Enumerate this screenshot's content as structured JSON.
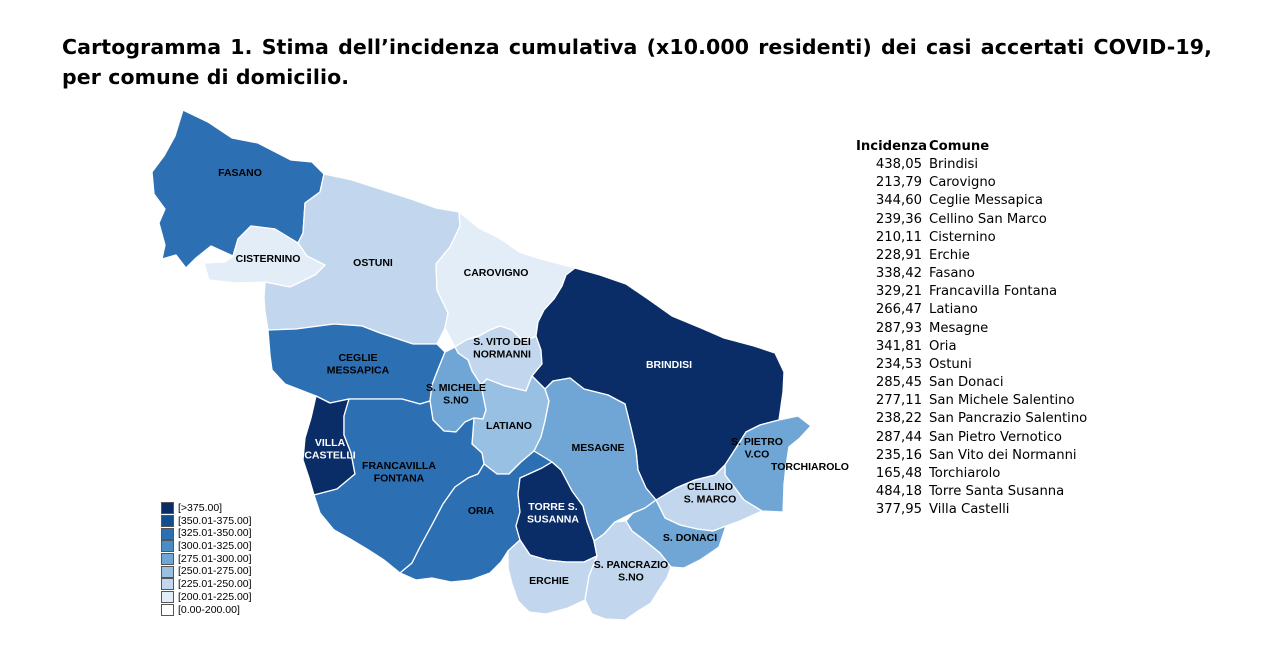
{
  "title": "Cartogramma 1. Stima dell’incidenza cumulativa (x10.000 residenti) dei casi accertati COVID-19, per comune di domicilio.",
  "legend": [
    {
      "label": "[>375.00]",
      "color": "#0b2d67"
    },
    {
      "label": "[350.01-375.00]",
      "color": "#114e8f"
    },
    {
      "label": "[325.01-350.00]",
      "color": "#2c6fb3"
    },
    {
      "label": "[300.01-325.00]",
      "color": "#4a8cc6"
    },
    {
      "label": "[275.01-300.00]",
      "color": "#6fa6d5"
    },
    {
      "label": "[250.01-275.00]",
      "color": "#98c0e3"
    },
    {
      "label": "[225.01-250.00]",
      "color": "#c2d7ee"
    },
    {
      "label": "[200.01-225.00]",
      "color": "#e3edf8"
    },
    {
      "label": "[0.00-200.00]",
      "color": "#ffffff"
    }
  ],
  "table": {
    "header_incidence": "Incidenza",
    "header_comune": "Comune",
    "rows": [
      {
        "value": "438,05",
        "name": "Brindisi"
      },
      {
        "value": "213,79",
        "name": "Carovigno"
      },
      {
        "value": "344,60",
        "name": "Ceglie Messapica"
      },
      {
        "value": "239,36",
        "name": "Cellino San Marco"
      },
      {
        "value": "210,11",
        "name": "Cisternino"
      },
      {
        "value": "228,91",
        "name": "Erchie"
      },
      {
        "value": "338,42",
        "name": "Fasano"
      },
      {
        "value": "329,21",
        "name": "Francavilla Fontana"
      },
      {
        "value": "266,47",
        "name": "Latiano"
      },
      {
        "value": "287,93",
        "name": "Mesagne"
      },
      {
        "value": "341,81",
        "name": "Oria"
      },
      {
        "value": "234,53",
        "name": "Ostuni"
      },
      {
        "value": "285,45",
        "name": "San Donaci"
      },
      {
        "value": "277,11",
        "name": "San Michele Salentino"
      },
      {
        "value": "238,22",
        "name": "San Pancrazio Salentino"
      },
      {
        "value": "287,44",
        "name": "San Pietro Vernotico"
      },
      {
        "value": "235,16",
        "name": "San Vito dei Normanni"
      },
      {
        "value": "165,48",
        "name": "Torchiarolo"
      },
      {
        "value": "484,18",
        "name": "Torre Santa Susanna"
      },
      {
        "value": "377,95",
        "name": "Villa Castelli"
      }
    ]
  },
  "map_labels": {
    "fasano": [
      "FASANO"
    ],
    "cisternino": [
      "CISTERNINO"
    ],
    "ostuni": [
      "OSTUNI"
    ],
    "carovigno": [
      "CAROVIGNO"
    ],
    "svito": [
      "S. VITO DEI",
      "NORMANNI"
    ],
    "ceglie": [
      "CEGLIE",
      "MESSAPICA"
    ],
    "smichele": [
      "S. MICHELE",
      "S.NO"
    ],
    "brindisi": [
      "BRINDISI"
    ],
    "latiano": [
      "LATIANO"
    ],
    "villa": [
      "VILLA",
      "CASTELLI"
    ],
    "francavilla": [
      "FRANCAVILLA",
      "FONTANA"
    ],
    "mesagne": [
      "MESAGNE"
    ],
    "spietro": [
      "S. PIETRO",
      "V.CO"
    ],
    "torchiarolo": [
      "TORCHIAROLO"
    ],
    "cellino": [
      "CELLINO",
      "S. MARCO"
    ],
    "oria": [
      "ORIA"
    ],
    "torre": [
      "TORRE S.",
      "SUSANNA"
    ],
    "sdonaci": [
      "S. DONACI"
    ],
    "erchie": [
      "ERCHIE"
    ],
    "spancrazio": [
      "S. PANCRAZIO",
      "S.NO"
    ]
  },
  "map_fills": {
    "fasano": "#2c6fb3",
    "cisternino": "#e3edf8",
    "ostuni": "#c2d7ee",
    "carovigno": "#e3edf8",
    "svito": "#c2d7ee",
    "ceglie": "#2c6fb3",
    "smichele": "#6fa6d5",
    "brindisi": "#0b2d67",
    "latiano": "#98c0e3",
    "villa": "#0b2d67",
    "francavilla": "#2c6fb3",
    "mesagne": "#6fa6d5",
    "spietro": "#6fa6d5",
    "torchiarolo": "#ffffff",
    "cellino": "#c2d7ee",
    "oria": "#2c6fb3",
    "torre": "#0b2d67",
    "sdonaci": "#6fa6d5",
    "erchie": "#c2d7ee",
    "spancrazio": "#c2d7ee"
  }
}
